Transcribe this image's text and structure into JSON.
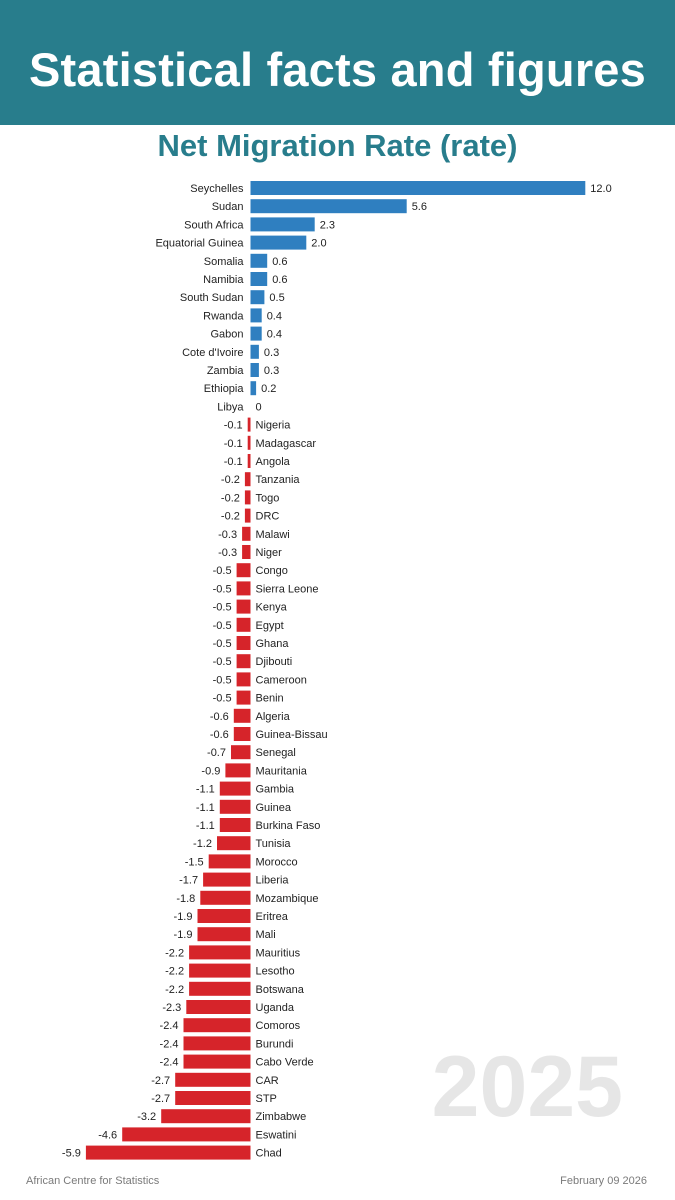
{
  "header": {
    "title": "Statistical facts and figures"
  },
  "watermark": "2025",
  "footer": {
    "source": "African Centre for Statistics",
    "date": "February 09 2026"
  },
  "colors": {
    "banner": "#287d8c",
    "positive": "#2f7fc0",
    "negative": "#d6242a"
  },
  "chart_data": {
    "type": "bar",
    "orientation": "horizontal",
    "title": "Net Migration Rate (rate)",
    "categories": [
      "Seychelles",
      "Sudan",
      "South Africa",
      "Equatorial Guinea",
      "Somalia",
      "Namibia",
      "South Sudan",
      "Rwanda",
      "Gabon",
      "Cote d'Ivoire",
      "Zambia",
      "Ethiopia",
      "Libya",
      "Nigeria",
      "Madagascar",
      "Angola",
      "Tanzania",
      "Togo",
      "DRC",
      "Malawi",
      "Niger",
      "Congo",
      "Sierra Leone",
      "Kenya",
      "Egypt",
      "Ghana",
      "Djibouti",
      "Cameroon",
      "Benin",
      "Algeria",
      "Guinea-Bissau",
      "Senegal",
      "Mauritania",
      "Gambia",
      "Guinea",
      "Burkina Faso",
      "Tunisia",
      "Morocco",
      "Liberia",
      "Mozambique",
      "Eritrea",
      "Mali",
      "Mauritius",
      "Lesotho",
      "Botswana",
      "Uganda",
      "Comoros",
      "Burundi",
      "Cabo Verde",
      "CAR",
      "STP",
      "Zimbabwe",
      "Eswatini",
      "Chad"
    ],
    "values": [
      12.0,
      5.6,
      2.3,
      2.0,
      0.6,
      0.6,
      0.5,
      0.4,
      0.4,
      0.3,
      0.3,
      0.2,
      0,
      -0.1,
      -0.1,
      -0.1,
      -0.2,
      -0.2,
      -0.2,
      -0.3,
      -0.3,
      -0.5,
      -0.5,
      -0.5,
      -0.5,
      -0.5,
      -0.5,
      -0.5,
      -0.5,
      -0.6,
      -0.6,
      -0.7,
      -0.9,
      -1.1,
      -1.1,
      -1.1,
      -1.2,
      -1.5,
      -1.7,
      -1.8,
      -1.9,
      -1.9,
      -2.2,
      -2.2,
      -2.2,
      -2.3,
      -2.4,
      -2.4,
      -2.4,
      -2.7,
      -2.7,
      -3.2,
      -4.6,
      -5.9
    ],
    "value_labels": [
      "12.0",
      "5.6",
      "2.3",
      "2.0",
      "0.6",
      "0.6",
      "0.5",
      "0.4",
      "0.4",
      "0.3",
      "0.3",
      "0.2",
      "0",
      "-0.1",
      "-0.1",
      "-0.1",
      "-0.2",
      "-0.2",
      "-0.2",
      "-0.3",
      "-0.3",
      "-0.5",
      "-0.5",
      "-0.5",
      "-0.5",
      "-0.5",
      "-0.5",
      "-0.5",
      "-0.5",
      "-0.6",
      "-0.6",
      "-0.7",
      "-0.9",
      "-1.1",
      "-1.1",
      "-1.1",
      "-1.2",
      "-1.5",
      "-1.7",
      "-1.8",
      "-1.9",
      "-1.9",
      "-2.2",
      "-2.2",
      "-2.2",
      "-2.3",
      "-2.4",
      "-2.4",
      "-2.4",
      "-2.7",
      "-2.7",
      "-3.2",
      "-4.6",
      "-5.9"
    ],
    "xlim": [
      -5.9,
      12.0
    ],
    "grid": false,
    "legend": "none"
  }
}
